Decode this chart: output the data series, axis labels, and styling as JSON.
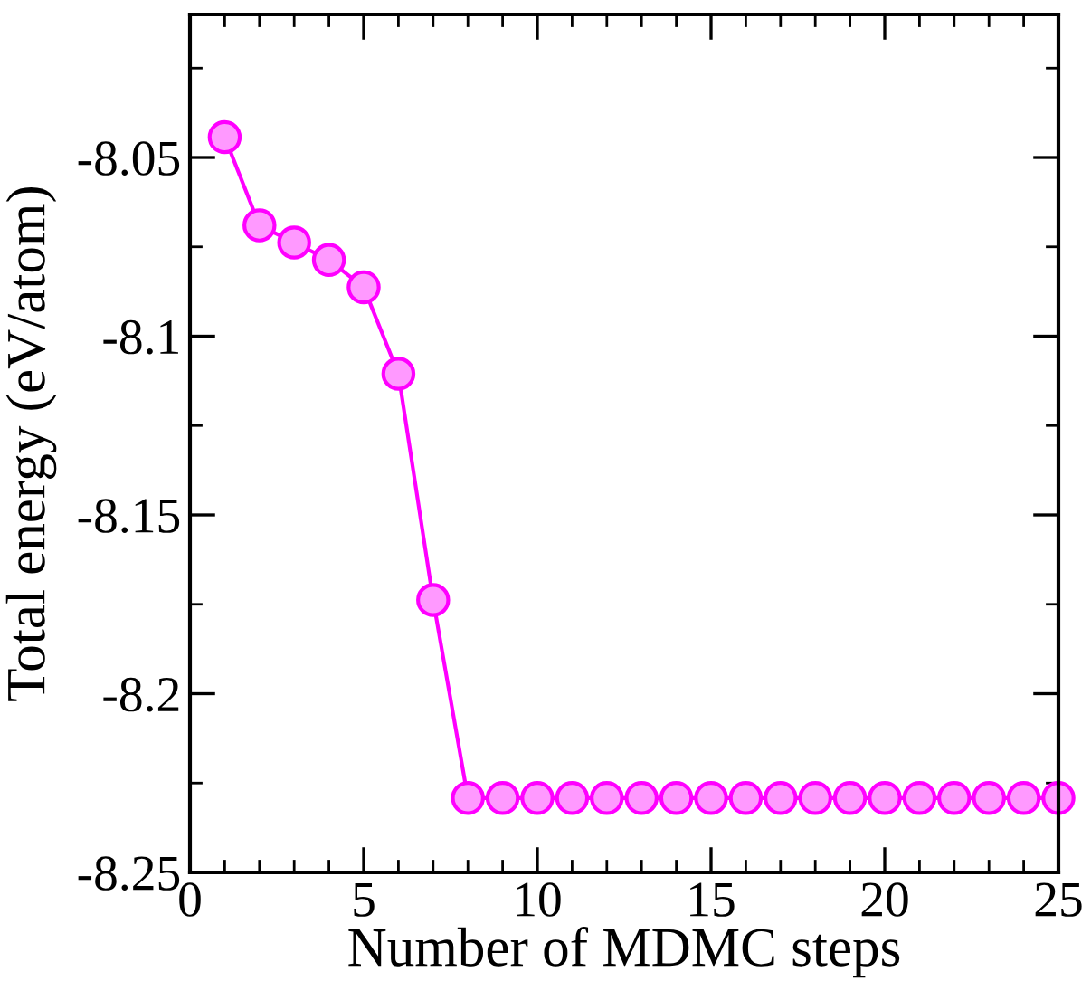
{
  "chart_data": {
    "type": "line",
    "xlabel": "Number of MDMC steps",
    "ylabel": "Total energy (eV/atom)",
    "x": [
      1,
      2,
      3,
      4,
      5,
      6,
      7,
      8,
      9,
      10,
      11,
      12,
      13,
      14,
      15,
      16,
      17,
      18,
      19,
      20,
      21,
      22,
      23,
      24,
      25
    ],
    "series": [
      {
        "color": "#ff00ff",
        "values": [
          -8.0443,
          -8.069,
          -8.0738,
          -8.0787,
          -8.0863,
          -8.1105,
          -8.1738,
          -8.2292,
          -8.2292,
          -8.2292,
          -8.2292,
          -8.2292,
          -8.2292,
          -8.2292,
          -8.2292,
          -8.2292,
          -8.2292,
          -8.2292,
          -8.2292,
          -8.2292,
          -8.2292,
          -8.2292,
          -8.2292,
          -8.2292,
          -8.2292
        ]
      }
    ],
    "xlim": [
      0,
      25
    ],
    "xticks": [
      0,
      5,
      10,
      15,
      20,
      25
    ],
    "ylim": [
      -8.25,
      -8.01
    ],
    "yticks": [
      -8.25,
      -8.2,
      -8.15,
      -8.1,
      -8.05
    ],
    "marker": "circle",
    "line_style": "solid",
    "grid": false
  }
}
